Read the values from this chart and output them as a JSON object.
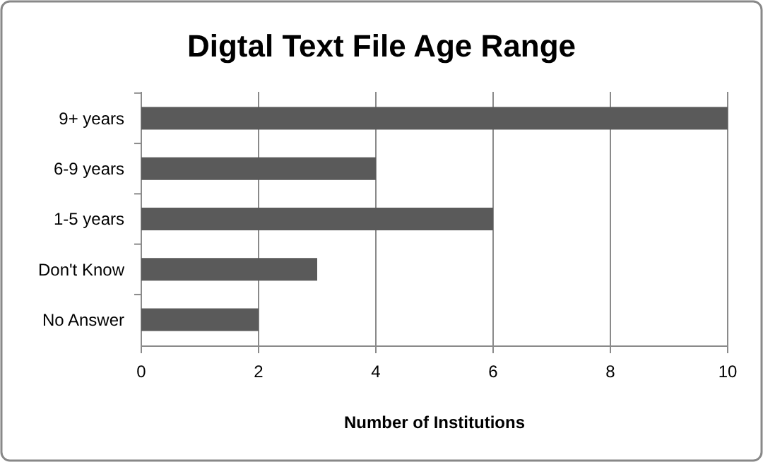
{
  "chart_data": {
    "type": "bar",
    "title": "Digtal Text File Age Range",
    "xlabel": "Number of Institutions",
    "orientation": "horizontal",
    "categories": [
      "9+ years",
      "6-9 years",
      "1-5 years",
      "Don't Know",
      "No Answer"
    ],
    "values": [
      10,
      4,
      6,
      3,
      2
    ],
    "color": "#5a5a5a",
    "xlim": [
      0,
      10
    ],
    "xticks": [
      0,
      2,
      4,
      6,
      8,
      10
    ],
    "grid": "x"
  }
}
